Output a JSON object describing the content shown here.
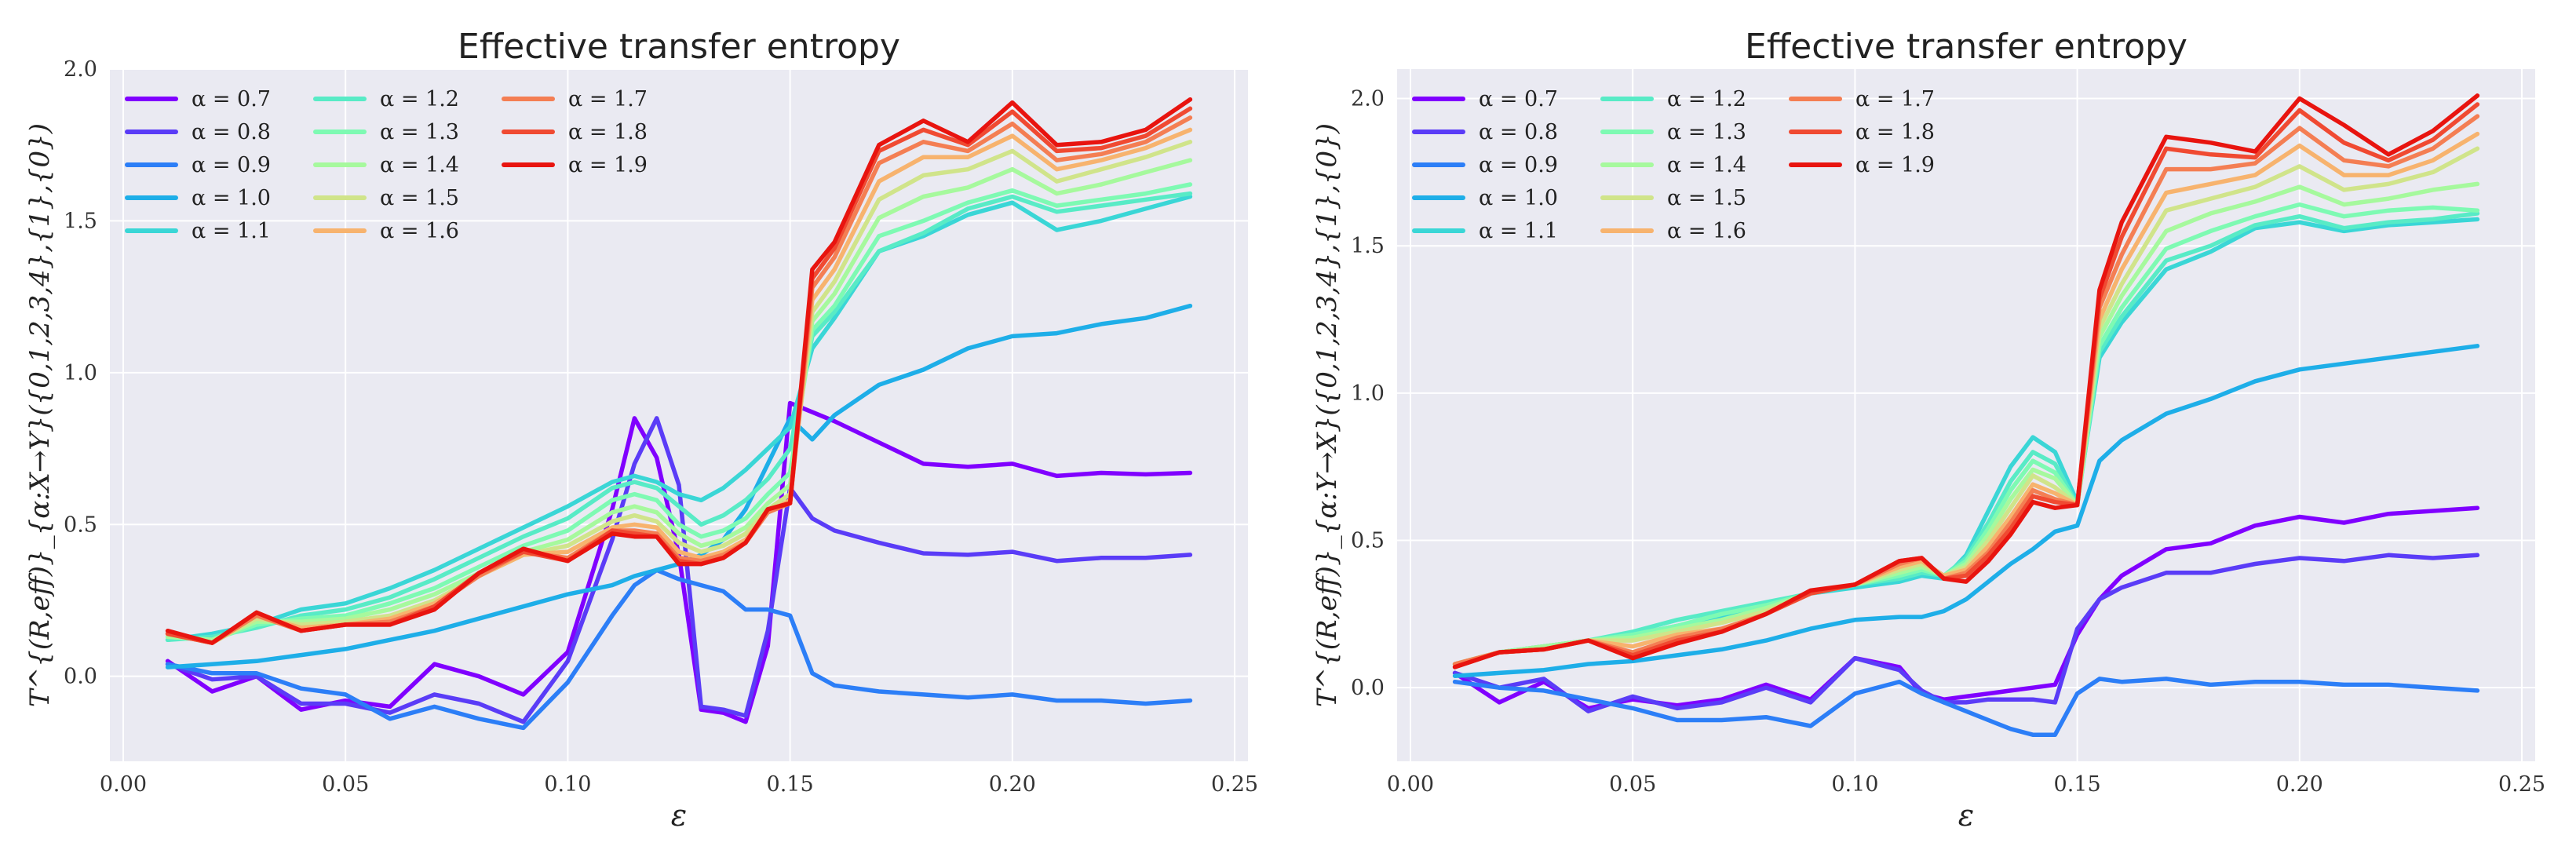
{
  "chart_data": [
    {
      "type": "line",
      "title": "Effective transfer entropy",
      "xlabel": "ε",
      "ylabel": "T^{(R,eff)}_{α:X→Y}({0,1,2,3,4},{1},{0})",
      "xlim": [
        -0.003,
        0.253
      ],
      "ylim": [
        -0.28,
        2.0
      ],
      "xticks": [
        0.0,
        0.05,
        0.1,
        0.15,
        0.2,
        0.25
      ],
      "xtick_labels": [
        "0.00",
        "0.05",
        "0.10",
        "0.15",
        "0.20",
        "0.25"
      ],
      "yticks": [
        0.0,
        0.5,
        1.0,
        1.5,
        2.0
      ],
      "ytick_labels": [
        "0.0",
        "0.5",
        "1.0",
        "1.5",
        "2.0"
      ],
      "grid": true,
      "legend_position": "upper-left",
      "legend_columns": 3,
      "x": [
        0.01,
        0.02,
        0.03,
        0.04,
        0.05,
        0.06,
        0.07,
        0.08,
        0.09,
        0.1,
        0.11,
        0.115,
        0.12,
        0.125,
        0.13,
        0.135,
        0.14,
        0.145,
        0.15,
        0.155,
        0.16,
        0.17,
        0.18,
        0.19,
        0.2,
        0.21,
        0.22,
        0.23,
        0.24
      ],
      "series": [
        {
          "name": "α = 0.7",
          "label": "α = 0.7",
          "color": "#8000ff",
          "values": [
            0.05,
            -0.05,
            0.0,
            -0.11,
            -0.08,
            -0.1,
            0.04,
            0.0,
            -0.06,
            0.08,
            0.55,
            0.85,
            0.72,
            0.4,
            -0.11,
            -0.12,
            -0.15,
            0.1,
            0.9,
            0.87,
            0.84,
            0.77,
            0.7,
            0.69,
            0.7,
            0.66,
            0.67,
            0.665,
            0.67
          ]
        },
        {
          "name": "α = 0.8",
          "label": "α = 0.8",
          "color": "#5a3cf7",
          "values": [
            0.04,
            -0.01,
            0.0,
            -0.09,
            -0.09,
            -0.12,
            -0.06,
            -0.09,
            -0.15,
            0.05,
            0.45,
            0.7,
            0.85,
            0.63,
            -0.1,
            -0.11,
            -0.13,
            0.15,
            0.62,
            0.52,
            0.48,
            0.44,
            0.405,
            0.4,
            0.41,
            0.38,
            0.39,
            0.39,
            0.4
          ]
        },
        {
          "name": "α = 0.9",
          "label": "α = 0.9",
          "color": "#2c7ef7",
          "values": [
            0.04,
            0.01,
            0.01,
            -0.04,
            -0.06,
            -0.14,
            -0.1,
            -0.14,
            -0.17,
            -0.02,
            0.2,
            0.3,
            0.35,
            0.32,
            0.3,
            0.28,
            0.22,
            0.22,
            0.2,
            0.01,
            -0.03,
            -0.05,
            -0.06,
            -0.07,
            -0.06,
            -0.08,
            -0.08,
            -0.09,
            -0.08
          ]
        },
        {
          "name": "α = 1.0",
          "label": "α = 1.0",
          "color": "#1eaee8",
          "values": [
            0.03,
            0.04,
            0.05,
            0.07,
            0.09,
            0.12,
            0.15,
            0.19,
            0.23,
            0.27,
            0.3,
            0.33,
            0.35,
            0.37,
            0.4,
            0.45,
            0.55,
            0.7,
            0.85,
            0.78,
            0.86,
            0.96,
            1.01,
            1.08,
            1.12,
            1.13,
            1.16,
            1.18,
            1.22
          ]
        },
        {
          "name": "α = 1.1",
          "label": "α = 1.1",
          "color": "#3ad6d6",
          "values": [
            0.12,
            0.14,
            0.17,
            0.22,
            0.24,
            0.29,
            0.35,
            0.42,
            0.49,
            0.56,
            0.64,
            0.66,
            0.64,
            0.6,
            0.58,
            0.62,
            0.68,
            0.75,
            0.82,
            1.08,
            1.18,
            1.4,
            1.45,
            1.52,
            1.56,
            1.47,
            1.5,
            1.54,
            1.58
          ]
        },
        {
          "name": "α = 1.2",
          "label": "α = 1.2",
          "color": "#58ebc6",
          "values": [
            0.12,
            0.13,
            0.16,
            0.2,
            0.22,
            0.26,
            0.32,
            0.39,
            0.46,
            0.52,
            0.62,
            0.64,
            0.62,
            0.56,
            0.5,
            0.53,
            0.58,
            0.65,
            0.75,
            1.12,
            1.2,
            1.4,
            1.46,
            1.54,
            1.58,
            1.53,
            1.55,
            1.57,
            1.59
          ]
        },
        {
          "name": "α = 1.3",
          "label": "α = 1.3",
          "color": "#7efab3",
          "values": [
            0.13,
            0.12,
            0.17,
            0.19,
            0.2,
            0.24,
            0.29,
            0.36,
            0.43,
            0.48,
            0.58,
            0.6,
            0.58,
            0.5,
            0.46,
            0.48,
            0.52,
            0.6,
            0.67,
            1.14,
            1.22,
            1.45,
            1.5,
            1.56,
            1.6,
            1.55,
            1.57,
            1.59,
            1.62
          ]
        },
        {
          "name": "α = 1.4",
          "label": "α = 1.4",
          "color": "#a6f99d",
          "values": [
            0.13,
            0.12,
            0.18,
            0.18,
            0.19,
            0.22,
            0.27,
            0.34,
            0.41,
            0.45,
            0.54,
            0.56,
            0.54,
            0.47,
            0.43,
            0.45,
            0.49,
            0.57,
            0.63,
            1.17,
            1.26,
            1.51,
            1.58,
            1.61,
            1.67,
            1.59,
            1.62,
            1.66,
            1.7
          ]
        },
        {
          "name": "α = 1.5",
          "label": "α = 1.5",
          "color": "#d0e48a",
          "values": [
            0.14,
            0.11,
            0.19,
            0.17,
            0.18,
            0.2,
            0.25,
            0.33,
            0.4,
            0.43,
            0.51,
            0.53,
            0.51,
            0.44,
            0.41,
            0.43,
            0.47,
            0.55,
            0.6,
            1.2,
            1.3,
            1.57,
            1.65,
            1.67,
            1.73,
            1.63,
            1.67,
            1.71,
            1.76
          ]
        },
        {
          "name": "α = 1.6",
          "label": "α = 1.6",
          "color": "#f7b36e",
          "values": [
            0.14,
            0.11,
            0.2,
            0.16,
            0.17,
            0.19,
            0.24,
            0.33,
            0.4,
            0.41,
            0.49,
            0.5,
            0.49,
            0.41,
            0.39,
            0.41,
            0.45,
            0.54,
            0.58,
            1.24,
            1.34,
            1.63,
            1.71,
            1.71,
            1.78,
            1.67,
            1.7,
            1.74,
            1.8
          ]
        },
        {
          "name": "α = 1.7",
          "label": "α = 1.7",
          "color": "#f47e53",
          "values": [
            0.14,
            0.11,
            0.2,
            0.15,
            0.17,
            0.18,
            0.23,
            0.33,
            0.41,
            0.39,
            0.48,
            0.48,
            0.47,
            0.39,
            0.38,
            0.4,
            0.44,
            0.54,
            0.57,
            1.28,
            1.38,
            1.69,
            1.76,
            1.73,
            1.82,
            1.7,
            1.72,
            1.76,
            1.84
          ]
        },
        {
          "name": "α = 1.8",
          "label": "α = 1.8",
          "color": "#f04a32",
          "values": [
            0.14,
            0.11,
            0.21,
            0.15,
            0.17,
            0.17,
            0.23,
            0.34,
            0.41,
            0.38,
            0.48,
            0.47,
            0.46,
            0.38,
            0.37,
            0.39,
            0.44,
            0.55,
            0.57,
            1.31,
            1.41,
            1.73,
            1.8,
            1.75,
            1.86,
            1.73,
            1.74,
            1.78,
            1.87
          ]
        },
        {
          "name": "α = 1.9",
          "label": "α = 1.9",
          "color": "#e8140f",
          "values": [
            0.15,
            0.11,
            0.21,
            0.15,
            0.17,
            0.17,
            0.22,
            0.34,
            0.42,
            0.38,
            0.47,
            0.46,
            0.46,
            0.37,
            0.37,
            0.39,
            0.44,
            0.55,
            0.57,
            1.34,
            1.43,
            1.75,
            1.83,
            1.76,
            1.89,
            1.75,
            1.76,
            1.8,
            1.9
          ]
        }
      ]
    },
    {
      "type": "line",
      "title": "Effective transfer entropy",
      "xlabel": "ε",
      "ylabel": "T^{(R,eff)}_{α:Y→X}({0,1,2,3,4},{1},{0})",
      "xlim": [
        -0.003,
        0.253
      ],
      "ylim": [
        -0.25,
        2.1
      ],
      "xticks": [
        0.0,
        0.05,
        0.1,
        0.15,
        0.2,
        0.25
      ],
      "xtick_labels": [
        "0.00",
        "0.05",
        "0.10",
        "0.15",
        "0.20",
        "0.25"
      ],
      "yticks": [
        0.0,
        0.5,
        1.0,
        1.5,
        2.0
      ],
      "ytick_labels": [
        "0.0",
        "0.5",
        "1.0",
        "1.5",
        "2.0"
      ],
      "grid": true,
      "legend_position": "upper-left",
      "legend_columns": 3,
      "x": [
        0.01,
        0.02,
        0.03,
        0.04,
        0.05,
        0.06,
        0.07,
        0.08,
        0.09,
        0.1,
        0.11,
        0.115,
        0.12,
        0.125,
        0.13,
        0.135,
        0.14,
        0.145,
        0.15,
        0.155,
        0.16,
        0.17,
        0.18,
        0.19,
        0.2,
        0.21,
        0.22,
        0.23,
        0.24
      ],
      "series": [
        {
          "name": "α = 0.7",
          "label": "α = 0.7",
          "color": "#8000ff",
          "values": [
            0.05,
            -0.05,
            0.02,
            -0.07,
            -0.04,
            -0.06,
            -0.04,
            0.01,
            -0.04,
            0.1,
            0.07,
            -0.02,
            -0.04,
            -0.03,
            -0.02,
            -0.01,
            0.0,
            0.01,
            0.18,
            0.3,
            0.38,
            0.47,
            0.49,
            0.55,
            0.58,
            0.56,
            0.59,
            0.6,
            0.61
          ]
        },
        {
          "name": "α = 0.8",
          "label": "α = 0.8",
          "color": "#5a3cf7",
          "values": [
            0.05,
            0.0,
            0.03,
            -0.08,
            -0.03,
            -0.07,
            -0.05,
            0.0,
            -0.05,
            0.1,
            0.06,
            -0.01,
            -0.05,
            -0.05,
            -0.04,
            -0.04,
            -0.04,
            -0.05,
            0.2,
            0.3,
            0.34,
            0.39,
            0.39,
            0.42,
            0.44,
            0.43,
            0.45,
            0.44,
            0.45
          ]
        },
        {
          "name": "α = 0.9",
          "label": "α = 0.9",
          "color": "#2c7ef7",
          "values": [
            0.02,
            0.0,
            -0.01,
            -0.04,
            -0.07,
            -0.11,
            -0.11,
            -0.1,
            -0.13,
            -0.02,
            0.02,
            -0.02,
            -0.05,
            -0.08,
            -0.11,
            -0.14,
            -0.16,
            -0.16,
            -0.02,
            0.03,
            0.02,
            0.03,
            0.01,
            0.02,
            0.02,
            0.01,
            0.01,
            0.0,
            -0.01
          ]
        },
        {
          "name": "α = 1.0",
          "label": "α = 1.0",
          "color": "#1eaee8",
          "values": [
            0.04,
            0.05,
            0.06,
            0.08,
            0.09,
            0.11,
            0.13,
            0.16,
            0.2,
            0.23,
            0.24,
            0.24,
            0.26,
            0.3,
            0.36,
            0.42,
            0.47,
            0.53,
            0.55,
            0.77,
            0.84,
            0.93,
            0.98,
            1.04,
            1.08,
            1.1,
            1.12,
            1.14,
            1.16
          ]
        },
        {
          "name": "α = 1.1",
          "label": "α = 1.1",
          "color": "#3ad6d6",
          "values": [
            0.08,
            0.12,
            0.14,
            0.16,
            0.18,
            0.21,
            0.24,
            0.28,
            0.32,
            0.34,
            0.36,
            0.38,
            0.37,
            0.45,
            0.6,
            0.75,
            0.85,
            0.8,
            0.63,
            1.12,
            1.24,
            1.42,
            1.48,
            1.56,
            1.58,
            1.55,
            1.57,
            1.58,
            1.59
          ]
        },
        {
          "name": "α = 1.2",
          "label": "α = 1.2",
          "color": "#58ebc6",
          "values": [
            0.08,
            0.12,
            0.14,
            0.16,
            0.19,
            0.23,
            0.26,
            0.29,
            0.32,
            0.35,
            0.37,
            0.39,
            0.38,
            0.44,
            0.56,
            0.7,
            0.8,
            0.76,
            0.62,
            1.14,
            1.26,
            1.45,
            1.5,
            1.57,
            1.6,
            1.56,
            1.58,
            1.59,
            1.61
          ]
        },
        {
          "name": "α = 1.3",
          "label": "α = 1.3",
          "color": "#7efab3",
          "values": [
            0.08,
            0.12,
            0.14,
            0.16,
            0.18,
            0.21,
            0.25,
            0.28,
            0.32,
            0.35,
            0.38,
            0.4,
            0.38,
            0.43,
            0.54,
            0.67,
            0.77,
            0.73,
            0.62,
            1.16,
            1.29,
            1.49,
            1.55,
            1.6,
            1.64,
            1.6,
            1.62,
            1.63,
            1.62
          ]
        },
        {
          "name": "α = 1.4",
          "label": "α = 1.4",
          "color": "#a6f99d",
          "values": [
            0.08,
            0.12,
            0.14,
            0.16,
            0.17,
            0.2,
            0.23,
            0.27,
            0.32,
            0.35,
            0.39,
            0.41,
            0.38,
            0.42,
            0.52,
            0.64,
            0.74,
            0.71,
            0.62,
            1.19,
            1.33,
            1.55,
            1.61,
            1.65,
            1.7,
            1.64,
            1.66,
            1.69,
            1.71
          ]
        },
        {
          "name": "α = 1.5",
          "label": "α = 1.5",
          "color": "#d0e48a",
          "values": [
            0.08,
            0.12,
            0.13,
            0.16,
            0.16,
            0.19,
            0.22,
            0.26,
            0.32,
            0.35,
            0.4,
            0.42,
            0.38,
            0.41,
            0.5,
            0.61,
            0.72,
            0.68,
            0.62,
            1.22,
            1.37,
            1.62,
            1.66,
            1.7,
            1.77,
            1.69,
            1.71,
            1.75,
            1.83
          ]
        },
        {
          "name": "α = 1.6",
          "label": "α = 1.6",
          "color": "#f7b36e",
          "values": [
            0.08,
            0.12,
            0.13,
            0.16,
            0.14,
            0.18,
            0.2,
            0.25,
            0.32,
            0.35,
            0.41,
            0.43,
            0.38,
            0.4,
            0.48,
            0.58,
            0.69,
            0.66,
            0.62,
            1.25,
            1.42,
            1.68,
            1.71,
            1.74,
            1.84,
            1.74,
            1.74,
            1.79,
            1.88
          ]
        },
        {
          "name": "α = 1.7",
          "label": "α = 1.7",
          "color": "#f47e53",
          "values": [
            0.08,
            0.12,
            0.13,
            0.16,
            0.12,
            0.17,
            0.2,
            0.25,
            0.32,
            0.35,
            0.42,
            0.44,
            0.37,
            0.39,
            0.46,
            0.56,
            0.67,
            0.64,
            0.62,
            1.29,
            1.47,
            1.76,
            1.76,
            1.78,
            1.9,
            1.79,
            1.77,
            1.83,
            1.94
          ]
        },
        {
          "name": "α = 1.8",
          "label": "α = 1.8",
          "color": "#f04a32",
          "values": [
            0.07,
            0.12,
            0.13,
            0.16,
            0.11,
            0.16,
            0.19,
            0.25,
            0.32,
            0.35,
            0.43,
            0.44,
            0.37,
            0.38,
            0.45,
            0.54,
            0.65,
            0.63,
            0.62,
            1.32,
            1.53,
            1.83,
            1.81,
            1.8,
            1.96,
            1.85,
            1.79,
            1.86,
            1.98
          ]
        },
        {
          "name": "α = 1.9",
          "label": "α = 1.9",
          "color": "#e8140f",
          "values": [
            0.07,
            0.12,
            0.13,
            0.16,
            0.1,
            0.15,
            0.19,
            0.25,
            0.33,
            0.35,
            0.43,
            0.44,
            0.37,
            0.36,
            0.43,
            0.52,
            0.63,
            0.61,
            0.62,
            1.35,
            1.58,
            1.87,
            1.85,
            1.82,
            2.0,
            1.91,
            1.81,
            1.89,
            2.01
          ]
        }
      ]
    }
  ]
}
